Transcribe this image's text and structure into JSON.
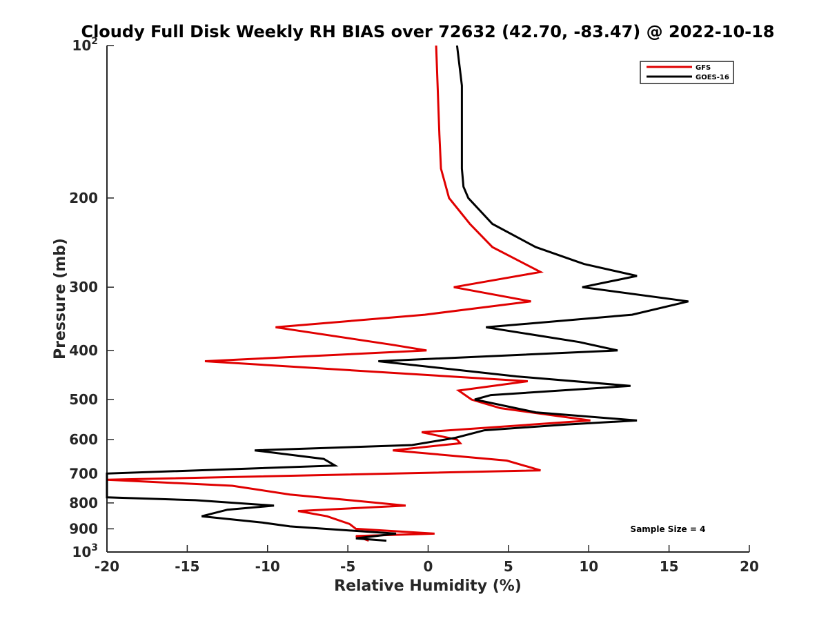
{
  "chart_data": {
    "type": "line",
    "title": "Cloudy Full Disk Weekly RH BIAS over 72632 (42.70, -83.47) @ 2022-10-18",
    "xlabel": "Relative Humidity (%)",
    "ylabel": "Pressure (mb)",
    "xlim": [
      -20,
      20
    ],
    "ylim": [
      100,
      1000
    ],
    "yscale": "log",
    "y_reversed": true,
    "xticks": [
      -20,
      -15,
      -10,
      -5,
      0,
      5,
      10,
      15,
      20
    ],
    "xtick_labels": [
      "-20",
      "-15",
      "-10",
      "-5",
      "0",
      "5",
      "10",
      "15",
      "20"
    ],
    "yticks": [
      {
        "value": 100,
        "base": "10",
        "exp": "2"
      },
      {
        "value": 200,
        "label": "200"
      },
      {
        "value": 300,
        "label": "300"
      },
      {
        "value": 400,
        "label": "400"
      },
      {
        "value": 500,
        "label": "500"
      },
      {
        "value": 600,
        "label": "600"
      },
      {
        "value": 700,
        "label": "700"
      },
      {
        "value": 800,
        "label": "800"
      },
      {
        "value": 900,
        "label": "900"
      },
      {
        "value": 1000,
        "base": "10",
        "exp": "3"
      }
    ],
    "grid": false,
    "legend_position": "top-right",
    "annotation": "Sample Size = 4",
    "series": [
      {
        "name": "GFS",
        "color": "#e00000",
        "points": [
          [
            0.5,
            100
          ],
          [
            0.7,
            150
          ],
          [
            0.8,
            175
          ],
          [
            1.3,
            200
          ],
          [
            2.6,
            225
          ],
          [
            4.0,
            250
          ],
          [
            7.0,
            280
          ],
          [
            1.6,
            300
          ],
          [
            6.4,
            320
          ],
          [
            -0.2,
            340
          ],
          [
            -9.5,
            360
          ],
          [
            -2.2,
            390
          ],
          [
            -0.1,
            400
          ],
          [
            -13.9,
            420
          ],
          [
            6.2,
            460
          ],
          [
            1.9,
            480
          ],
          [
            2.7,
            500
          ],
          [
            4.5,
            520
          ],
          [
            10.1,
            550
          ],
          [
            -0.4,
            580
          ],
          [
            1.8,
            600
          ],
          [
            2.0,
            610
          ],
          [
            -2.2,
            630
          ],
          [
            4.9,
            660
          ],
          [
            7.0,
            690
          ],
          [
            -20.0,
            720
          ],
          [
            -12.2,
            740
          ],
          [
            -8.6,
            770
          ],
          [
            -4.9,
            790
          ],
          [
            -1.4,
            810
          ],
          [
            -8.1,
            830
          ],
          [
            -6.3,
            850
          ],
          [
            -4.9,
            880
          ],
          [
            -4.5,
            900
          ],
          [
            0.4,
            920
          ],
          [
            -4.5,
            930
          ],
          [
            -3.7,
            950
          ]
        ]
      },
      {
        "name": "GOES-16",
        "color": "#000000",
        "points": [
          [
            1.8,
            100
          ],
          [
            2.1,
            120
          ],
          [
            2.1,
            150
          ],
          [
            2.1,
            175
          ],
          [
            2.2,
            190
          ],
          [
            2.5,
            200
          ],
          [
            4.0,
            225
          ],
          [
            6.7,
            250
          ],
          [
            9.7,
            270
          ],
          [
            13.0,
            285
          ],
          [
            9.6,
            300
          ],
          [
            16.2,
            320
          ],
          [
            12.7,
            340
          ],
          [
            3.6,
            360
          ],
          [
            9.4,
            385
          ],
          [
            11.8,
            400
          ],
          [
            -3.1,
            420
          ],
          [
            5.5,
            450
          ],
          [
            12.6,
            470
          ],
          [
            3.9,
            490
          ],
          [
            2.9,
            500
          ],
          [
            6.7,
            530
          ],
          [
            13.0,
            550
          ],
          [
            8.6,
            560
          ],
          [
            3.5,
            575
          ],
          [
            1.7,
            595
          ],
          [
            -1.0,
            615
          ],
          [
            -10.8,
            630
          ],
          [
            -6.5,
            655
          ],
          [
            -5.8,
            675
          ],
          [
            -20.0,
            700
          ],
          [
            -20.0,
            780
          ],
          [
            -14.5,
            790
          ],
          [
            -9.6,
            810
          ],
          [
            -12.5,
            825
          ],
          [
            -14.1,
            850
          ],
          [
            -10.3,
            875
          ],
          [
            -8.6,
            890
          ],
          [
            -2.0,
            920
          ],
          [
            -4.5,
            940
          ],
          [
            -2.6,
            950
          ],
          [
            -2.6,
            950
          ]
        ]
      }
    ]
  }
}
